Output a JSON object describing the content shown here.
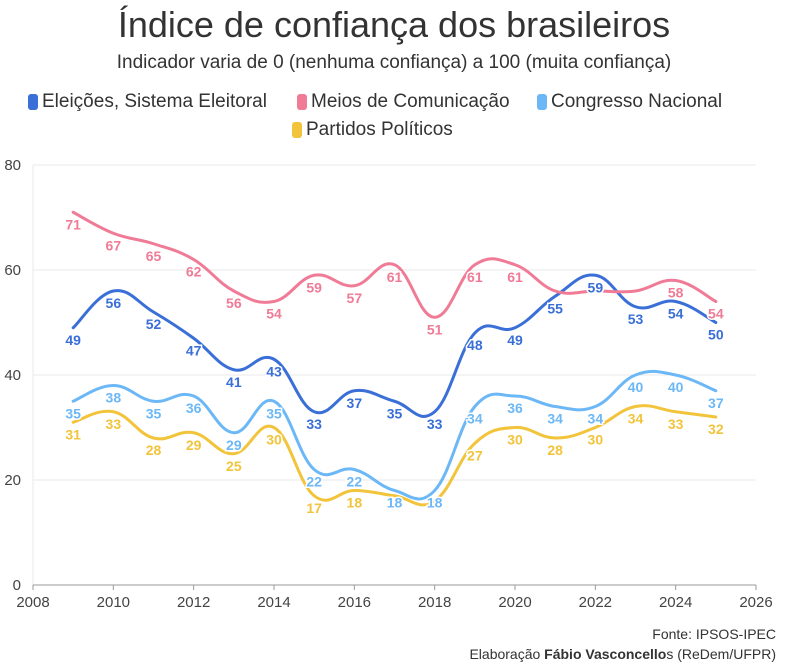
{
  "title": "Índice de confiança dos brasileiros",
  "subtitle": "Indicador varia de 0 (nenhuma confiança) a 100 (muita confiança)",
  "source": "Fonte: IPSOS-IPEC",
  "credit": {
    "prefix": "Elaboração ",
    "name": "Fábio Vasconcello",
    "suffix": "s (ReDem/UFPR)"
  },
  "chart_data": {
    "type": "line",
    "title": "Índice de confiança dos brasileiros",
    "x": [
      2009,
      2010,
      2011,
      2012,
      2013,
      2014,
      2015,
      2016,
      2017,
      2018,
      2019,
      2020,
      2021,
      2022,
      2023,
      2024,
      2025
    ],
    "xlim": [
      2008,
      2026
    ],
    "ylim": [
      0,
      80
    ],
    "xticks": [
      2008,
      2010,
      2012,
      2014,
      2016,
      2018,
      2020,
      2022,
      2024,
      2026
    ],
    "yticks": [
      0,
      20,
      40,
      60,
      80
    ],
    "grid": true,
    "legend": "top",
    "series": [
      {
        "name": "Eleições, Sistema Eleitoral",
        "color": "#3a6fd8",
        "values": [
          49,
          56,
          52,
          47,
          41,
          43,
          33,
          37,
          35,
          33,
          48,
          49,
          55,
          59,
          53,
          54,
          50
        ],
        "labeled": [
          1,
          1,
          1,
          1,
          1,
          1,
          1,
          1,
          1,
          1,
          1,
          1,
          1,
          1,
          1,
          1,
          1
        ]
      },
      {
        "name": "Meios de Comunicação",
        "color": "#f07b96",
        "values": [
          71,
          67,
          65,
          62,
          56,
          54,
          59,
          57,
          61,
          51,
          61,
          61,
          56,
          56,
          56,
          58,
          54
        ],
        "labeled": [
          1,
          1,
          1,
          1,
          1,
          1,
          1,
          1,
          1,
          1,
          1,
          1,
          0,
          0,
          0,
          1,
          1
        ]
      },
      {
        "name": "Congresso Nacional",
        "color": "#6cb8f6",
        "values": [
          35,
          38,
          35,
          36,
          29,
          35,
          22,
          22,
          18,
          18,
          34,
          36,
          34,
          34,
          40,
          40,
          37
        ],
        "labeled": [
          1,
          1,
          1,
          1,
          1,
          1,
          1,
          1,
          1,
          1,
          1,
          1,
          1,
          1,
          1,
          1,
          1
        ]
      },
      {
        "name": "Partidos Políticos",
        "color": "#f2c43b",
        "values": [
          31,
          33,
          28,
          29,
          25,
          30,
          17,
          18,
          17,
          16,
          27,
          30,
          28,
          30,
          34,
          33,
          32
        ],
        "labeled": [
          1,
          1,
          1,
          1,
          1,
          1,
          1,
          1,
          0,
          0,
          1,
          1,
          1,
          1,
          1,
          1,
          1
        ]
      }
    ]
  }
}
